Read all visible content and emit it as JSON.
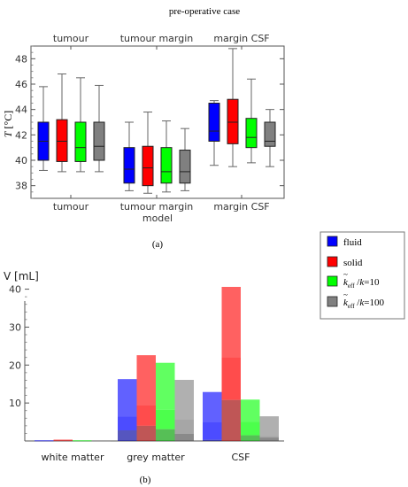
{
  "figure_title": "pre-operative case",
  "chart_data": [
    {
      "type": "box",
      "caption": "(a)",
      "top_category_labels": [
        "tumour",
        "tumour margin",
        "margin CSF"
      ],
      "categories": [
        "tumour",
        "tumour margin",
        "margin CSF"
      ],
      "xlabel": "model",
      "ylabel": "T [°C]",
      "ylim": [
        37,
        49
      ],
      "yticks": [
        38,
        40,
        42,
        44,
        46,
        48
      ],
      "grid": false,
      "series_colors": [
        "#0000ff",
        "#ff0000",
        "#00ff00",
        "#808080"
      ],
      "boxes": [
        [
          {
            "min": 39.2,
            "q1": 40.0,
            "median": 41.5,
            "q3": 43.0,
            "max": 45.8
          },
          {
            "min": 39.1,
            "q1": 39.9,
            "median": 41.5,
            "q3": 43.2,
            "max": 46.8
          },
          {
            "min": 39.1,
            "q1": 39.9,
            "median": 41.0,
            "q3": 43.0,
            "max": 46.5
          },
          {
            "min": 39.1,
            "q1": 40.0,
            "median": 41.1,
            "q3": 43.0,
            "max": 45.9
          }
        ],
        [
          {
            "min": 37.6,
            "q1": 38.2,
            "median": 39.3,
            "q3": 41.0,
            "max": 43.0
          },
          {
            "min": 37.4,
            "q1": 38.0,
            "median": 39.4,
            "q3": 41.1,
            "max": 43.8
          },
          {
            "min": 37.5,
            "q1": 38.2,
            "median": 39.1,
            "q3": 41.0,
            "max": 43.1
          },
          {
            "min": 37.6,
            "q1": 38.2,
            "median": 39.1,
            "q3": 40.8,
            "max": 42.5
          }
        ],
        [
          {
            "min": 39.6,
            "q1": 41.5,
            "median": 42.3,
            "q3": 44.5,
            "max": 44.7
          },
          {
            "min": 39.5,
            "q1": 41.3,
            "median": 43.0,
            "q3": 44.8,
            "max": 48.8
          },
          {
            "min": 39.8,
            "q1": 41.0,
            "median": 41.8,
            "q3": 43.3,
            "max": 46.4
          },
          {
            "min": 39.5,
            "q1": 41.1,
            "median": 41.5,
            "q3": 43.0,
            "max": 44.0
          }
        ]
      ]
    },
    {
      "type": "bar",
      "stacked_layers": true,
      "caption": "(b)",
      "ylabel": "V [mL]",
      "ylim": [
        0,
        42
      ],
      "yticks": [
        10,
        20,
        30,
        40
      ],
      "grid": false,
      "legend_position": "top-right",
      "categories": [
        "white matter",
        "grey matter",
        "CSF"
      ],
      "series": [
        {
          "name": "fluid",
          "color": "#0000ff",
          "layers": [
            [
              0.05,
              0.1,
              0.15
            ],
            [
              2.8,
              6.5,
              16.3
            ],
            [
              0.3,
              4.9,
              12.9
            ]
          ]
        },
        {
          "name": "solid",
          "color": "#ff0000",
          "layers": [
            [
              0.1,
              0.2,
              0.35
            ],
            [
              4.0,
              9.5,
              22.6
            ],
            [
              10.8,
              22.1,
              40.6
            ]
          ]
        },
        {
          "name": "k_eff/k=10",
          "color": "#00ff00",
          "layers": [
            [
              0.05,
              0.1,
              0.15
            ],
            [
              3.1,
              8.2,
              20.6
            ],
            [
              1.5,
              5.1,
              10.9
            ]
          ]
        },
        {
          "name": "k_eff/k=100",
          "color": "#808080",
          "layers": [
            [
              0.05,
              0.1,
              0.15
            ],
            [
              1.9,
              5.6,
              16.1
            ],
            [
              0.9,
              1.3,
              6.5
            ]
          ]
        }
      ],
      "legend": {
        "entries": [
          "fluid",
          "solid",
          "k",
          "k",
          "k",
          "k"
        ],
        "k_eff_base": "k",
        "k_eff_sub": "eff",
        "slash": "/",
        "eq10": "=10",
        "eq100": "=100"
      }
    }
  ]
}
